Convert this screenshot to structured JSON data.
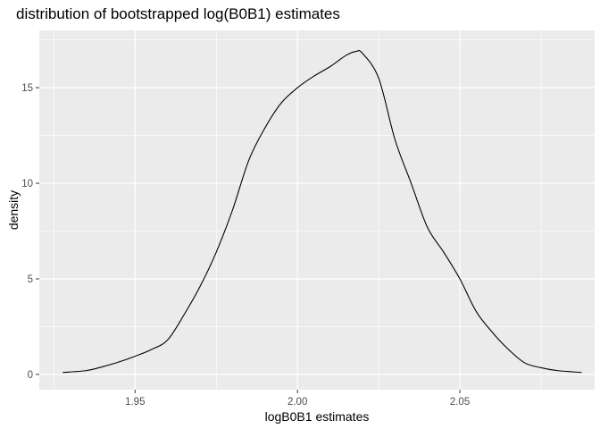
{
  "chart_data": {
    "type": "area",
    "title": "distribution of bootstrapped log(B0B1) estimates",
    "xlabel": "logB0B1 estimates",
    "ylabel": "density",
    "xlim": [
      1.9205,
      2.0915
    ],
    "ylim": [
      -0.8,
      18.0
    ],
    "x_ticks": [
      1.95,
      2.0,
      2.05
    ],
    "x_tick_labels": [
      "1.95",
      "2.00",
      "2.05"
    ],
    "y_ticks": [
      0,
      5,
      10,
      15
    ],
    "y_tick_labels": [
      "0",
      "5",
      "10",
      "15"
    ],
    "grid": true,
    "panel_background": "#ebebeb",
    "grid_color": "#ffffff",
    "line_color": "#000000",
    "series": [
      {
        "x": [
          1.9277,
          1.935,
          1.94,
          1.945,
          1.95,
          1.955,
          1.96,
          1.965,
          1.97,
          1.975,
          1.98,
          1.985,
          1.99,
          1.995,
          2.0,
          2.005,
          2.01,
          2.015,
          2.018,
          2.02,
          2.025,
          2.03,
          2.035,
          2.04,
          2.045,
          2.05,
          2.055,
          2.06,
          2.065,
          2.07,
          2.075,
          2.08,
          2.0875
        ],
        "y": [
          0.1,
          0.2,
          0.4,
          0.65,
          0.95,
          1.3,
          1.8,
          3.1,
          4.6,
          6.4,
          8.6,
          11.2,
          12.9,
          14.2,
          15.0,
          15.6,
          16.1,
          16.7,
          16.9,
          16.8,
          15.5,
          12.3,
          10.0,
          7.7,
          6.4,
          5.0,
          3.3,
          2.2,
          1.3,
          0.6,
          0.35,
          0.2,
          0.1
        ]
      }
    ]
  }
}
